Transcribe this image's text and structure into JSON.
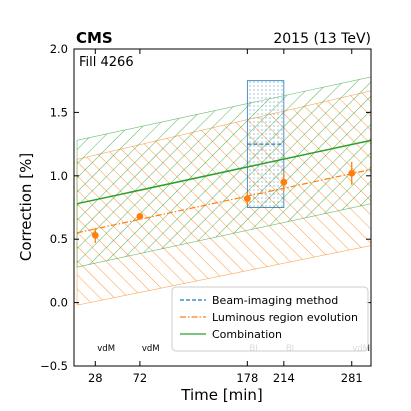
{
  "chart_data": {
    "type": "line",
    "header_left": "CMS",
    "header_right": "2015 (13 TeV)",
    "annotation": "Fill 4266",
    "xlabel": "Time [min]",
    "ylabel": "Correction [%]",
    "xlim": [
      7,
      300
    ],
    "ylim": [
      -0.5,
      2.0
    ],
    "yticks": [
      -0.5,
      0.0,
      0.5,
      1.0,
      1.5,
      2.0
    ],
    "ytick_labels": [
      "−0.5",
      "0.0",
      "0.5",
      "1.0",
      "1.5",
      "2.0"
    ],
    "xticks": [
      28,
      72,
      178,
      214,
      281
    ],
    "xtick_labels": [
      "28",
      "72",
      "178",
      "214",
      "281"
    ],
    "scan_markers": [
      {
        "x": 28,
        "label": "vdM"
      },
      {
        "x": 72,
        "label": "vdM"
      },
      {
        "x": 178,
        "label": "BI"
      },
      {
        "x": 214,
        "label": "BI"
      },
      {
        "x": 281,
        "label": "vdM"
      }
    ],
    "colors": {
      "beam_imaging": "#1f77b4",
      "luminous": "#ff7f0e",
      "combination": "#2ca02c"
    },
    "series": [
      {
        "name": "Beam-imaging method",
        "style": "dashed",
        "x_range": [
          178,
          214
        ],
        "value": 1.25,
        "band": [
          0.75,
          1.75
        ]
      },
      {
        "name": "Luminous region evolution",
        "style": "dashdot",
        "line": {
          "x": [
            10,
            300
          ],
          "y": [
            0.55,
            1.05
          ]
        },
        "band_upper": {
          "x": [
            10,
            300
          ],
          "y": [
            1.13,
            1.67
          ]
        },
        "band_lower": {
          "x": [
            10,
            300
          ],
          "y": [
            -0.02,
            0.45
          ]
        },
        "points": [
          {
            "x": 28,
            "y": 0.53,
            "err": 0.06
          },
          {
            "x": 72,
            "y": 0.68,
            "err": 0.02
          },
          {
            "x": 178,
            "y": 0.82,
            "err": 0.05
          },
          {
            "x": 214,
            "y": 0.95,
            "err": 0.07
          },
          {
            "x": 281,
            "y": 1.02,
            "err": 0.09
          }
        ]
      },
      {
        "name": "Combination",
        "style": "solid",
        "line": {
          "x": [
            10,
            300
          ],
          "y": [
            0.78,
            1.28
          ]
        },
        "band_upper": {
          "x": [
            10,
            300
          ],
          "y": [
            1.28,
            1.78
          ]
        },
        "band_lower": {
          "x": [
            10,
            300
          ],
          "y": [
            0.28,
            0.78
          ]
        }
      }
    ],
    "legend_position": "lower-right"
  }
}
